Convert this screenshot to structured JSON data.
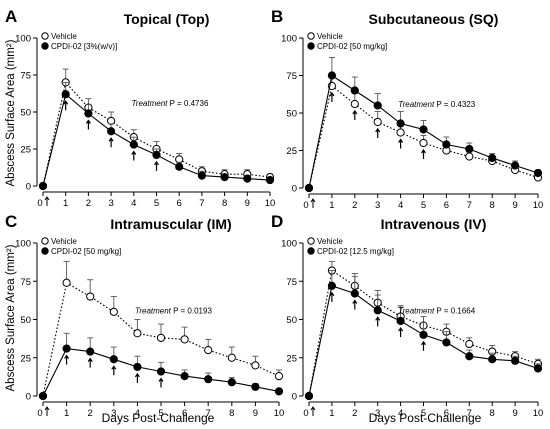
{
  "figure": {
    "shared_ylabel": "Abscess Surface Area (mm²)",
    "shared_xlabel": "Days Post-Challenge"
  },
  "chart_data": [
    {
      "type": "line",
      "panel": "A",
      "title": "Topical (Top)",
      "treatment_label": "Treatment",
      "treatment_p": "P = 0.4736",
      "x": [
        0,
        1,
        2,
        3,
        4,
        5,
        6,
        7,
        8,
        9,
        10
      ],
      "xticks": [
        "0",
        "1",
        "2",
        "3",
        "4",
        "5",
        "6",
        "7",
        "8",
        "9",
        "10"
      ],
      "ylim": [
        0,
        100
      ],
      "yticks": [
        "0",
        "25",
        "50",
        "75",
        "100"
      ],
      "series": [
        {
          "name": "Vehicle",
          "marker": "open-circle",
          "line": "dotted",
          "values": [
            0,
            70,
            53,
            44,
            33,
            25,
            18,
            10,
            8,
            8,
            6
          ],
          "errors": [
            0,
            9,
            6,
            6,
            5,
            5,
            4,
            3,
            3,
            3,
            2
          ]
        },
        {
          "name": "CPDI-02 [3%(w/v)]",
          "marker": "filled-circle",
          "line": "solid",
          "values": [
            0,
            62,
            49,
            37,
            28,
            21,
            13,
            7,
            6,
            5,
            4
          ],
          "errors": [
            0,
            8,
            6,
            5,
            5,
            4,
            3,
            3,
            2,
            2,
            2
          ]
        }
      ],
      "arrows_at": [
        1,
        2,
        3,
        4,
        5
      ]
    },
    {
      "type": "line",
      "panel": "B",
      "title": "Subcutaneous (SQ)",
      "treatment_label": "Treatment",
      "treatment_p": "P = 0.4323",
      "x": [
        0,
        1,
        2,
        3,
        4,
        5,
        6,
        7,
        8,
        9,
        10
      ],
      "xticks": [
        "0",
        "1",
        "2",
        "3",
        "4",
        "5",
        "6",
        "7",
        "8",
        "9",
        "10"
      ],
      "ylim": [
        0,
        100
      ],
      "yticks": [
        "0",
        "25",
        "50",
        "75",
        "100"
      ],
      "series": [
        {
          "name": "Vehicle",
          "marker": "open-circle",
          "line": "dotted",
          "values": [
            0,
            68,
            56,
            44,
            37,
            30,
            25,
            21,
            18,
            12,
            7
          ],
          "errors": [
            0,
            8,
            7,
            7,
            6,
            5,
            4,
            3,
            3,
            3,
            2
          ]
        },
        {
          "name": "CPDI-02 [50 mg/kg]",
          "marker": "filled-circle",
          "line": "solid",
          "values": [
            0,
            75,
            65,
            55,
            43,
            39,
            29,
            26,
            20,
            15,
            10
          ],
          "errors": [
            0,
            12,
            9,
            8,
            8,
            6,
            5,
            4,
            3,
            3,
            2
          ]
        }
      ],
      "arrows_at": [
        1,
        2,
        3,
        4,
        5
      ]
    },
    {
      "type": "line",
      "panel": "C",
      "title": "Intramuscular (IM)",
      "treatment_label": "Treatment",
      "treatment_p": "P = 0.0193",
      "x": [
        0,
        1,
        2,
        3,
        4,
        5,
        6,
        7,
        8,
        9,
        10
      ],
      "xticks": [
        "0",
        "1",
        "2",
        "3",
        "4",
        "5",
        "6",
        "7",
        "8",
        "9",
        "10"
      ],
      "ylim": [
        0,
        100
      ],
      "yticks": [
        "0",
        "25",
        "50",
        "75",
        "100"
      ],
      "series": [
        {
          "name": "Vehicle",
          "marker": "open-circle",
          "line": "dotted",
          "values": [
            0,
            74,
            65,
            55,
            41,
            38,
            37,
            30,
            25,
            20,
            13
          ],
          "errors": [
            0,
            14,
            11,
            10,
            9,
            9,
            8,
            7,
            7,
            6,
            4
          ]
        },
        {
          "name": "CPDI-02 [50 mg/kg]",
          "marker": "filled-circle",
          "line": "solid",
          "values": [
            0,
            31,
            29,
            24,
            19,
            16,
            13,
            11,
            9,
            6,
            3
          ],
          "errors": [
            0,
            10,
            9,
            8,
            7,
            6,
            4,
            4,
            3,
            2,
            1
          ]
        }
      ],
      "arrows_at": [
        1,
        2,
        3,
        4,
        5
      ]
    },
    {
      "type": "line",
      "panel": "D",
      "title": "Intravenous (IV)",
      "treatment_label": "Treatment",
      "treatment_p": "P = 0.1664",
      "x": [
        0,
        1,
        2,
        3,
        4,
        5,
        6,
        7,
        8,
        9,
        10
      ],
      "xticks": [
        "0",
        "1",
        "2",
        "3",
        "4",
        "5",
        "6",
        "7",
        "8",
        "9",
        "10"
      ],
      "ylim": [
        0,
        100
      ],
      "yticks": [
        "0",
        "25",
        "50",
        "75",
        "100"
      ],
      "series": [
        {
          "name": "Vehicle",
          "marker": "open-circle",
          "line": "dotted",
          "values": [
            0,
            82,
            72,
            61,
            52,
            46,
            42,
            34,
            29,
            26,
            21
          ],
          "errors": [
            0,
            6,
            8,
            8,
            7,
            6,
            5,
            4,
            4,
            3,
            3
          ]
        },
        {
          "name": "CPDI-02 [12.5 mg/kg]",
          "marker": "filled-circle",
          "line": "solid",
          "values": [
            0,
            72,
            67,
            56,
            49,
            40,
            35,
            26,
            24,
            23,
            18
          ],
          "errors": [
            0,
            10,
            11,
            10,
            9,
            8,
            7,
            4,
            4,
            3,
            3
          ]
        }
      ],
      "arrows_at": [
        1,
        2,
        3,
        4,
        5
      ]
    }
  ]
}
